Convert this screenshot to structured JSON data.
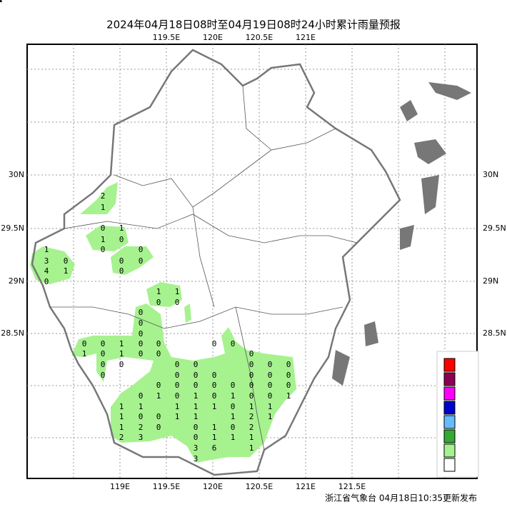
{
  "header": {
    "title": "2024年04月18日08时至04月19日08时24小时累计雨量预报"
  },
  "axes": {
    "top": [
      "119.5E",
      "120E",
      "120.5E",
      "121E"
    ],
    "bottom": [
      "119E",
      "119.5E",
      "120E",
      "120.5E",
      "121E",
      "121.5E"
    ],
    "left": [
      "30N",
      "29.5N",
      "29N",
      "28.5N"
    ],
    "right": [
      "30N",
      "29.5N",
      "29N",
      "28.5N"
    ]
  },
  "stations": [
    2,
    1,
    0,
    1,
    1,
    0,
    0,
    0,
    1,
    3,
    0,
    0,
    0,
    4,
    1,
    0,
    0,
    1,
    1,
    0,
    0,
    0,
    0,
    0,
    0,
    0,
    1,
    0,
    0,
    0,
    0,
    1,
    0,
    1,
    0,
    0,
    0,
    0,
    0,
    0,
    0,
    0,
    0,
    0,
    0,
    0,
    0,
    0,
    0,
    0,
    0,
    0,
    0,
    0,
    0,
    0,
    0,
    0,
    0,
    0,
    1,
    0,
    1,
    0,
    1,
    0,
    0,
    1,
    1,
    1,
    1,
    1,
    1,
    0,
    1,
    1,
    1,
    0,
    0,
    1,
    1,
    1,
    2,
    1,
    1,
    2,
    0,
    0,
    1,
    0,
    2,
    2,
    3,
    0,
    1,
    1,
    1,
    3,
    6,
    1,
    3,
    1,
    1,
    1,
    2,
    0,
    3
  ],
  "footer": {
    "source": "浙江省气象台 04月18日10:35更新发布"
  }
}
